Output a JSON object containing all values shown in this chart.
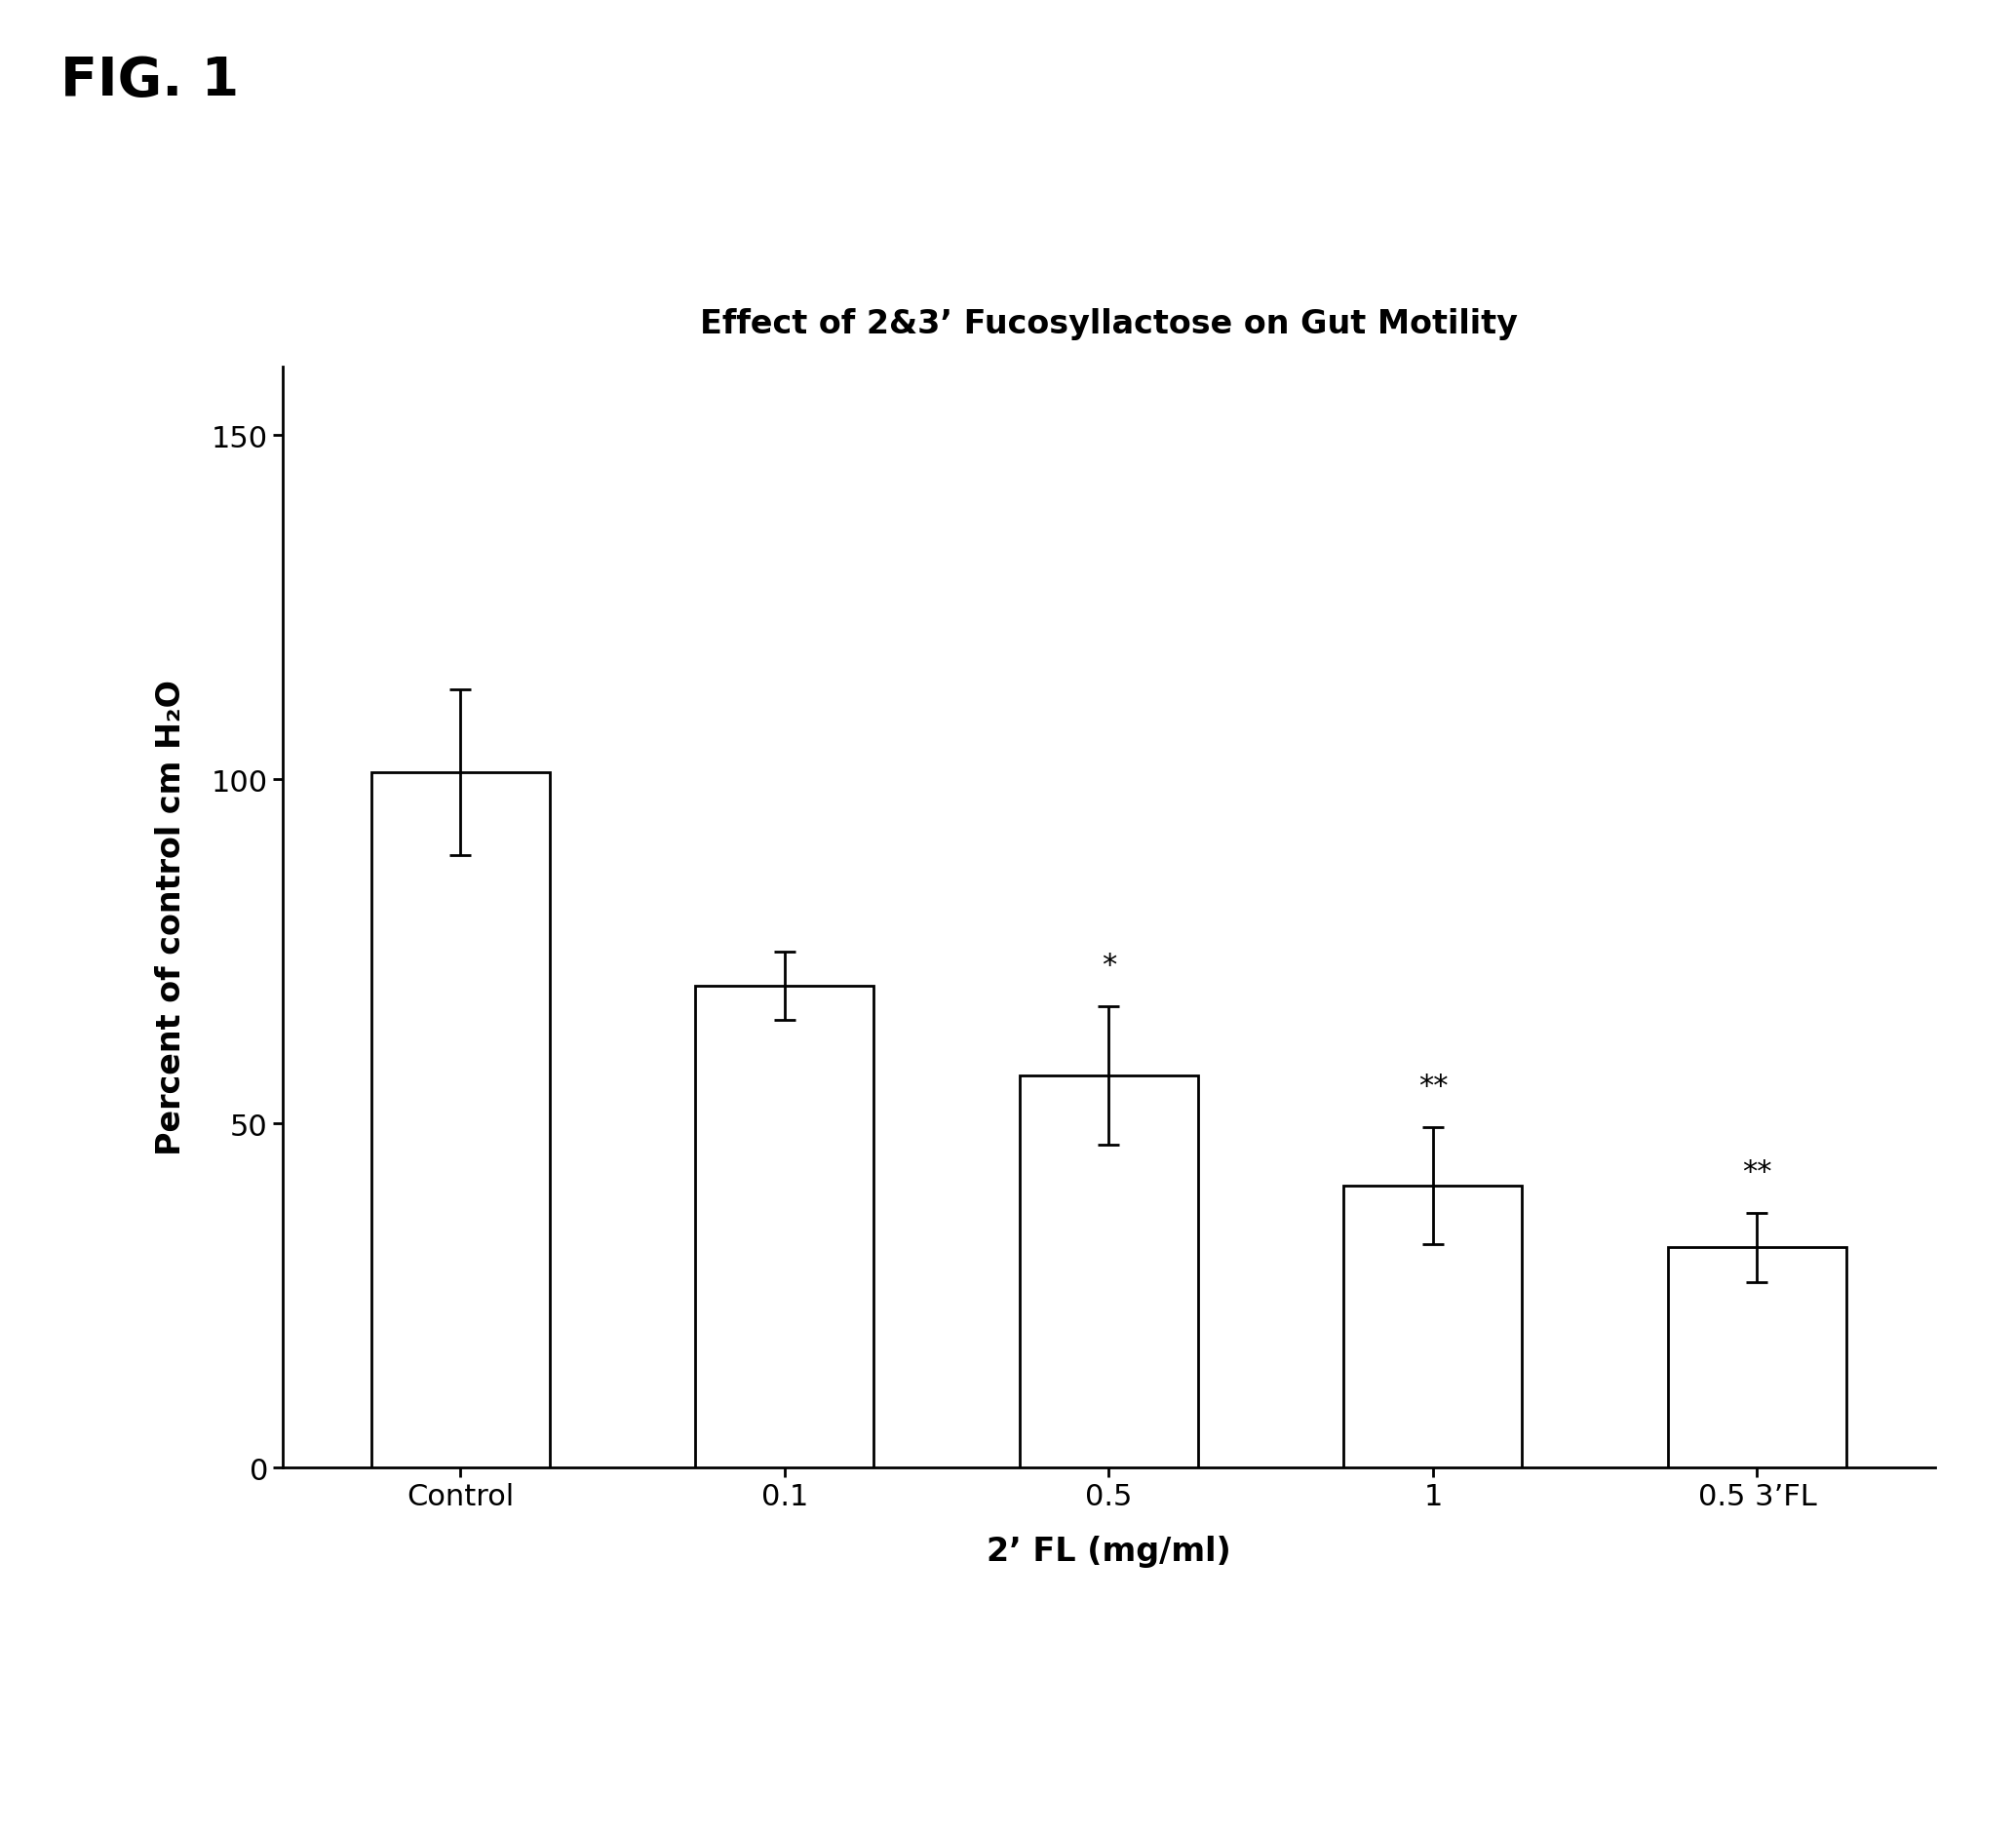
{
  "title": "Effect of 2&3’ Fucosyllactose on Gut Motility",
  "fig_label": "FIG. 1",
  "xlabel": "2’ FL (mg/ml)",
  "ylabel": "Percent of control cm H₂O",
  "categories": [
    "Control",
    "0.1",
    "0.5",
    "1",
    "0.5 3’FL"
  ],
  "values": [
    101.0,
    70.0,
    57.0,
    41.0,
    32.0
  ],
  "errors_up": [
    12.0,
    5.0,
    10.0,
    8.5,
    5.0
  ],
  "errors_down": [
    12.0,
    5.0,
    10.0,
    8.5,
    5.0
  ],
  "significance": [
    "",
    "",
    "*",
    "**",
    "**"
  ],
  "bar_color": "#ffffff",
  "bar_edgecolor": "#000000",
  "bar_linewidth": 2.0,
  "error_capsize": 8,
  "error_linewidth": 2.0,
  "ylim": [
    0,
    160
  ],
  "yticks": [
    0,
    50,
    100,
    150
  ],
  "background_color": "#ffffff",
  "title_fontsize": 24,
  "axis_label_fontsize": 24,
  "tick_fontsize": 22,
  "sig_fontsize": 22,
  "fig_label_fontsize": 40
}
